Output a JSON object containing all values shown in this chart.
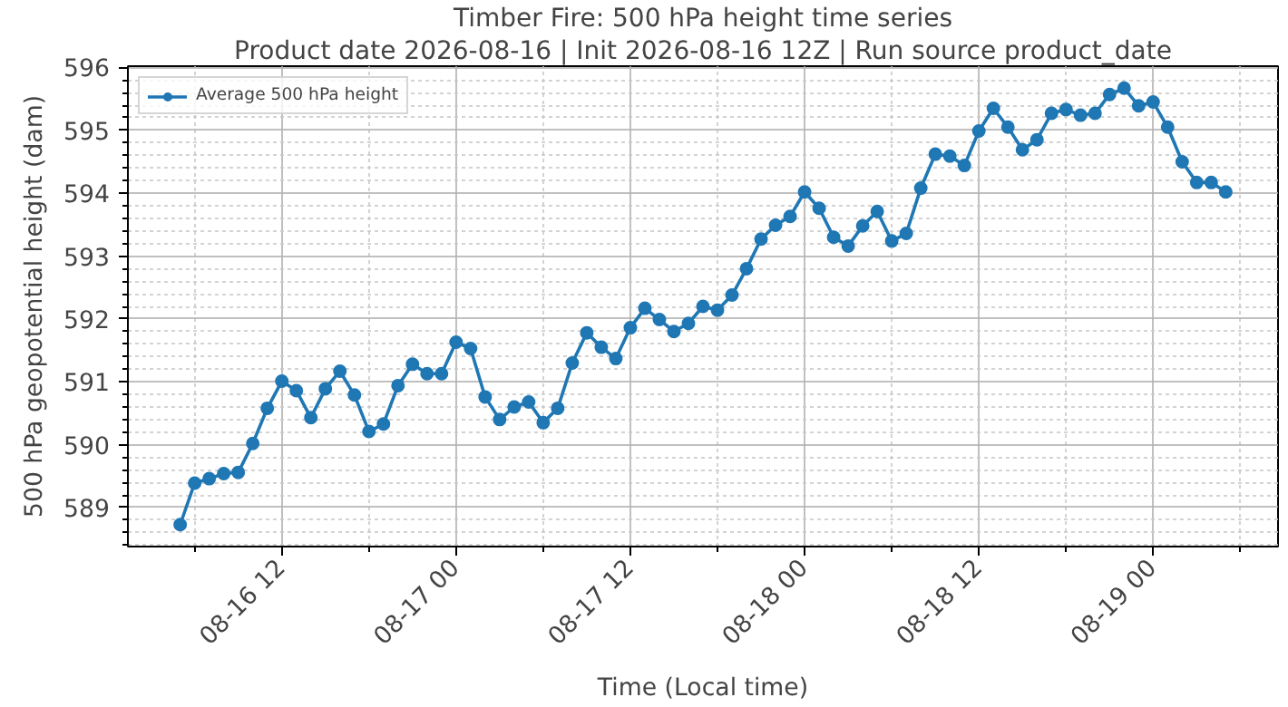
{
  "chart_data": {
    "type": "line",
    "title": "Timber Fire: 500 hPa height time series",
    "subtitle": "Product date 2026-08-16 | Init 2026-08-16 12Z | Run source product_date",
    "xlabel": "Time (Local time)",
    "ylabel": "500 hPa geopotential height (dam)",
    "x": [
      "2026-08-16T05:00",
      "2026-08-16T06:00",
      "2026-08-16T07:00",
      "2026-08-16T08:00",
      "2026-08-16T09:00",
      "2026-08-16T10:00",
      "2026-08-16T11:00",
      "2026-08-16T12:00",
      "2026-08-16T13:00",
      "2026-08-16T14:00",
      "2026-08-16T15:00",
      "2026-08-16T16:00",
      "2026-08-16T17:00",
      "2026-08-16T18:00",
      "2026-08-16T19:00",
      "2026-08-16T20:00",
      "2026-08-16T21:00",
      "2026-08-16T22:00",
      "2026-08-16T23:00",
      "2026-08-17T00:00",
      "2026-08-17T01:00",
      "2026-08-17T02:00",
      "2026-08-17T03:00",
      "2026-08-17T04:00",
      "2026-08-17T05:00",
      "2026-08-17T06:00",
      "2026-08-17T07:00",
      "2026-08-17T08:00",
      "2026-08-17T09:00",
      "2026-08-17T10:00",
      "2026-08-17T11:00",
      "2026-08-17T12:00",
      "2026-08-17T13:00",
      "2026-08-17T14:00",
      "2026-08-17T15:00",
      "2026-08-17T16:00",
      "2026-08-17T17:00",
      "2026-08-17T18:00",
      "2026-08-17T19:00",
      "2026-08-17T20:00",
      "2026-08-17T21:00",
      "2026-08-17T22:00",
      "2026-08-17T23:00",
      "2026-08-18T00:00",
      "2026-08-18T01:00",
      "2026-08-18T02:00",
      "2026-08-18T03:00",
      "2026-08-18T04:00",
      "2026-08-18T05:00",
      "2026-08-18T06:00",
      "2026-08-18T07:00",
      "2026-08-18T08:00",
      "2026-08-18T09:00",
      "2026-08-18T10:00",
      "2026-08-18T11:00",
      "2026-08-18T12:00",
      "2026-08-18T13:00",
      "2026-08-18T14:00",
      "2026-08-18T15:00",
      "2026-08-18T16:00",
      "2026-08-18T17:00",
      "2026-08-18T18:00",
      "2026-08-18T19:00",
      "2026-08-18T20:00",
      "2026-08-18T21:00",
      "2026-08-18T22:00",
      "2026-08-18T23:00",
      "2026-08-19T00:00",
      "2026-08-19T01:00",
      "2026-08-19T02:00",
      "2026-08-19T03:00",
      "2026-08-19T04:00",
      "2026-08-19T05:00"
    ],
    "series": [
      {
        "name": "Average 500 hPa height",
        "color": "#1f77b4",
        "values": [
          588.73,
          589.39,
          589.46,
          589.54,
          589.56,
          590.02,
          590.58,
          591.01,
          590.86,
          590.43,
          590.89,
          591.17,
          590.79,
          590.21,
          590.33,
          590.94,
          591.28,
          591.13,
          591.13,
          591.63,
          591.53,
          590.76,
          590.4,
          590.6,
          590.68,
          590.35,
          590.58,
          591.3,
          591.78,
          591.55,
          591.37,
          591.86,
          592.17,
          591.99,
          591.8,
          591.93,
          592.2,
          592.14,
          592.38,
          592.8,
          593.27,
          593.49,
          593.63,
          594.02,
          593.76,
          593.3,
          593.16,
          593.48,
          593.71,
          593.24,
          593.36,
          594.08,
          594.62,
          594.59,
          594.44,
          594.99,
          595.35,
          595.05,
          594.69,
          594.85,
          595.27,
          595.33,
          595.24,
          595.27,
          595.57,
          595.67,
          595.39,
          595.45,
          595.05,
          594.5,
          594.17,
          594.17,
          594.02
        ]
      }
    ],
    "xlim": [
      "2026-08-16T01:24",
      "2026-08-19T08:36"
    ],
    "ylim": [
      588.38,
      596.02
    ],
    "xticks": [
      {
        "value": "2026-08-16T06:00",
        "label": null
      },
      {
        "value": "2026-08-16T12:00",
        "label": "08-16 12"
      },
      {
        "value": "2026-08-16T18:00",
        "label": null
      },
      {
        "value": "2026-08-17T00:00",
        "label": "08-17 00"
      },
      {
        "value": "2026-08-17T06:00",
        "label": null
      },
      {
        "value": "2026-08-17T12:00",
        "label": "08-17 12"
      },
      {
        "value": "2026-08-17T18:00",
        "label": null
      },
      {
        "value": "2026-08-18T00:00",
        "label": "08-18 00"
      },
      {
        "value": "2026-08-18T06:00",
        "label": null
      },
      {
        "value": "2026-08-18T12:00",
        "label": "08-18 12"
      },
      {
        "value": "2026-08-18T18:00",
        "label": null
      },
      {
        "value": "2026-08-19T00:00",
        "label": "08-19 00"
      },
      {
        "value": "2026-08-19T06:00",
        "label": null
      }
    ],
    "yticks": [
      {
        "value": 588.4,
        "label": null
      },
      {
        "value": 588.6,
        "label": null
      },
      {
        "value": 588.8,
        "label": null
      },
      589,
      {
        "value": 589.2,
        "label": null
      },
      {
        "value": 589.4,
        "label": null
      },
      {
        "value": 589.6,
        "label": null
      },
      {
        "value": 589.8,
        "label": null
      },
      590,
      {
        "value": 590.2,
        "label": null
      },
      {
        "value": 590.4,
        "label": null
      },
      {
        "value": 590.6,
        "label": null
      },
      {
        "value": 590.8,
        "label": null
      },
      591,
      {
        "value": 591.2,
        "label": null
      },
      {
        "value": 591.4,
        "label": null
      },
      {
        "value": 591.6,
        "label": null
      },
      {
        "value": 591.8,
        "label": null
      },
      592,
      {
        "value": 592.2,
        "label": null
      },
      {
        "value": 592.4,
        "label": null
      },
      {
        "value": 592.6,
        "label": null
      },
      {
        "value": 592.8,
        "label": null
      },
      593,
      {
        "value": 593.2,
        "label": null
      },
      {
        "value": 593.4,
        "label": null
      },
      {
        "value": 593.6,
        "label": null
      },
      {
        "value": 593.8,
        "label": null
      },
      594,
      {
        "value": 594.2,
        "label": null
      },
      {
        "value": 594.4,
        "label": null
      },
      {
        "value": 594.6,
        "label": null
      },
      {
        "value": 594.8,
        "label": null
      },
      595,
      {
        "value": 595.2,
        "label": null
      },
      {
        "value": 595.4,
        "label": null
      },
      {
        "value": 595.6,
        "label": null
      },
      {
        "value": 595.8,
        "label": null
      },
      596
    ],
    "grid": true,
    "legend": "top left",
    "marker": "circle",
    "line_style": "solid"
  }
}
